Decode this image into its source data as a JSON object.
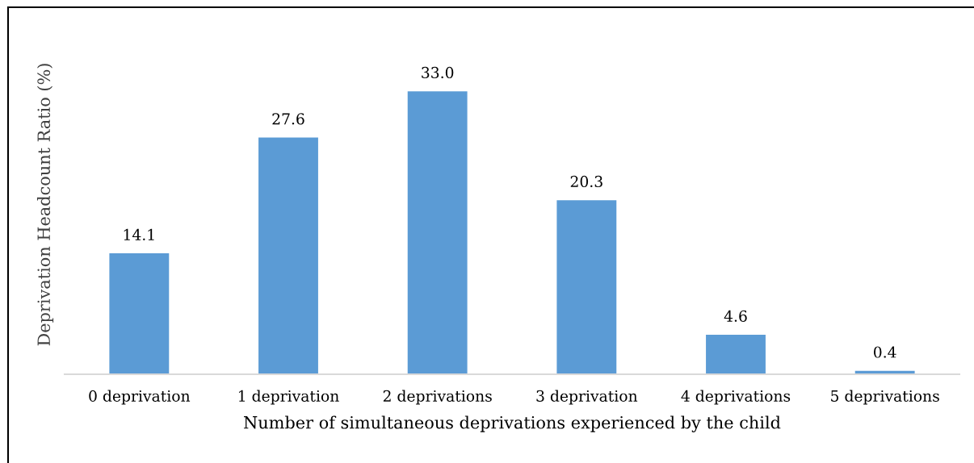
{
  "chart_data": {
    "type": "bar",
    "xlabel": "Number of simultaneous deprivations experienced by the child",
    "ylabel": "Deprivation Headcount Ratio (%)",
    "categories": [
      "0 deprivation",
      "1 deprivation",
      "2 deprivations",
      "3 deprivation",
      "4 deprivations",
      "5 deprivations"
    ],
    "values": [
      14.1,
      27.6,
      33.0,
      20.3,
      4.6,
      0.4
    ],
    "value_labels": [
      "14.1",
      "27.6",
      "33.0",
      "20.3",
      "4.6",
      "0.4"
    ],
    "color": "#5b9bd5",
    "tick_labels": "x",
    "grid": false,
    "legend": false
  }
}
